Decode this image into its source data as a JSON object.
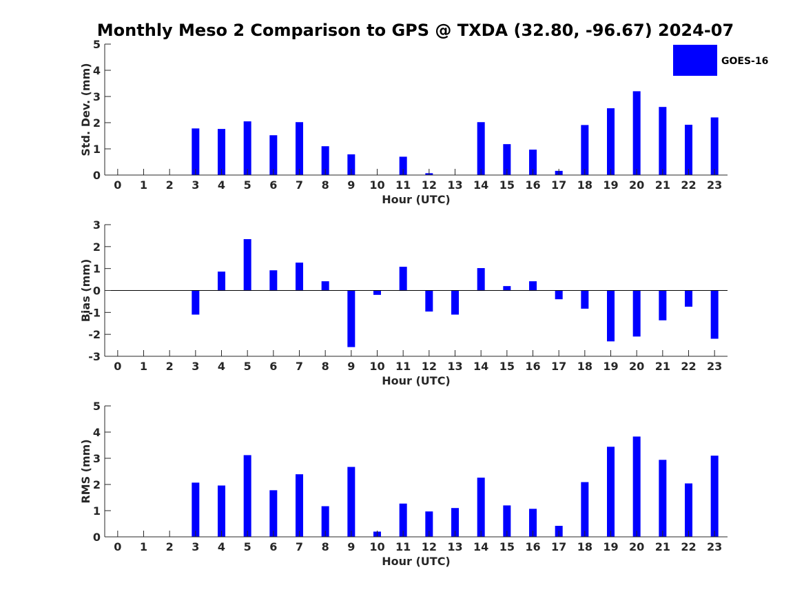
{
  "title": "Monthly Meso 2 Comparison to GPS @ TXDA (32.80, -96.67) 2024-07",
  "legend": {
    "label": "GOES-16",
    "color": "#0000FF"
  },
  "colors": {
    "bar": "#0000FF",
    "axis": "#262626",
    "zero_line": "#000000"
  },
  "chart_data": [
    {
      "type": "bar",
      "xlabel": "Hour (UTC)",
      "ylabel": "Std. Dev. (mm)",
      "xlim": [
        -0.5,
        23.5
      ],
      "ylim": [
        0,
        5
      ],
      "yticks": [
        0,
        1,
        2,
        3,
        4,
        5
      ],
      "categories": [
        "0",
        "1",
        "2",
        "3",
        "4",
        "5",
        "6",
        "7",
        "8",
        "9",
        "10",
        "11",
        "12",
        "13",
        "14",
        "15",
        "16",
        "17",
        "18",
        "19",
        "20",
        "21",
        "22",
        "23"
      ],
      "series": [
        {
          "name": "GOES-16",
          "values": [
            null,
            null,
            null,
            1.78,
            1.76,
            2.05,
            1.52,
            2.02,
            1.1,
            0.79,
            null,
            0.7,
            0.07,
            null,
            2.02,
            1.18,
            0.97,
            0.16,
            1.91,
            2.55,
            3.2,
            2.6,
            1.92,
            2.2
          ]
        }
      ],
      "grid": false,
      "legend_position": "top-right"
    },
    {
      "type": "bar",
      "xlabel": "Hour (UTC)",
      "ylabel": "Bias (mm)",
      "xlim": [
        -0.5,
        23.5
      ],
      "ylim": [
        -3,
        3
      ],
      "yticks": [
        -3,
        -2,
        -1,
        0,
        1,
        2,
        3
      ],
      "categories": [
        "0",
        "1",
        "2",
        "3",
        "4",
        "5",
        "6",
        "7",
        "8",
        "9",
        "10",
        "11",
        "12",
        "13",
        "14",
        "15",
        "16",
        "17",
        "18",
        "19",
        "20",
        "21",
        "22",
        "23"
      ],
      "series": [
        {
          "name": "GOES-16",
          "values": [
            null,
            null,
            null,
            -1.1,
            0.86,
            2.34,
            0.92,
            1.27,
            0.42,
            -2.58,
            -0.2,
            1.08,
            -0.96,
            -1.1,
            1.02,
            0.2,
            0.42,
            -0.4,
            -0.83,
            -2.32,
            -2.1,
            -1.36,
            -0.74,
            -2.2
          ]
        }
      ],
      "grid": false
    },
    {
      "type": "bar",
      "xlabel": "Hour (UTC)",
      "ylabel": "RMS (mm)",
      "xlim": [
        -0.5,
        23.5
      ],
      "ylim": [
        0,
        5
      ],
      "yticks": [
        0,
        1,
        2,
        3,
        4,
        5
      ],
      "categories": [
        "0",
        "1",
        "2",
        "3",
        "4",
        "5",
        "6",
        "7",
        "8",
        "9",
        "10",
        "11",
        "12",
        "13",
        "14",
        "15",
        "16",
        "17",
        "18",
        "19",
        "20",
        "21",
        "22",
        "23"
      ],
      "series": [
        {
          "name": "GOES-16",
          "values": [
            null,
            null,
            null,
            2.07,
            1.96,
            3.12,
            1.78,
            2.39,
            1.17,
            2.67,
            0.2,
            1.27,
            0.97,
            1.1,
            2.26,
            1.2,
            1.07,
            0.42,
            2.09,
            3.44,
            3.83,
            2.94,
            2.04,
            3.1
          ]
        }
      ],
      "grid": false
    }
  ]
}
